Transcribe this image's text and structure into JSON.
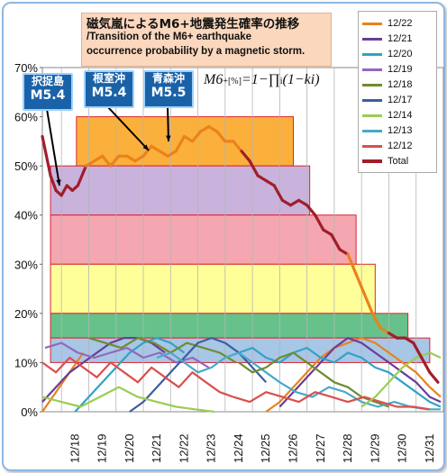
{
  "title": {
    "jp": "磁気嵐によるM6+地震発生確率の推移",
    "en_line1": "/Transition of the M6+ earthquake",
    "en_line2": "occurrence probability by a magnetic storm."
  },
  "equation": {
    "lhs": "M6",
    "sub": "+[%]",
    "rhs": "=1−∏",
    "sub_i": "i",
    "tail": "(1−ki)"
  },
  "annotations": [
    {
      "place": "択捉島",
      "magnitude": "M5.4"
    },
    {
      "place": "根室沖",
      "magnitude": "M5.4"
    },
    {
      "place": "青森沖",
      "magnitude": "M5.5"
    }
  ],
  "colors": {
    "total": "#a01e2a",
    "total_orange": "#e8821e",
    "band_orange": "#fbb03b",
    "band_purple": "#c9b3dd",
    "band_pink": "#f4a7b0",
    "band_yellow": "#ffff99",
    "band_green": "#66c28a",
    "band_blue": "#a8c6e6",
    "band_border": "#d9242f"
  },
  "chart_data": {
    "type": "line",
    "xlabel": "",
    "ylabel": "",
    "ylim": [
      0,
      70
    ],
    "y_ticks": [
      "0%",
      "10%",
      "20%",
      "30%",
      "40%",
      "50%",
      "60%",
      "70%"
    ],
    "x_ticks": [
      "12/18",
      "12/19",
      "12/20",
      "12/21",
      "12/22",
      "12/23",
      "12/24",
      "12/25",
      "12/26",
      "12/27",
      "12/28",
      "12/29",
      "12/30",
      "12/31"
    ],
    "xlim": [
      17.3,
      32.0
    ],
    "grid": "vertical",
    "legend_position": "top-right",
    "legend": [
      {
        "name": "12/22",
        "color": "#e8821e"
      },
      {
        "name": "12/21",
        "color": "#6a3d96"
      },
      {
        "name": "12/20",
        "color": "#2fa3c6"
      },
      {
        "name": "12/19",
        "color": "#9467bd"
      },
      {
        "name": "12/18",
        "color": "#6e8c2f"
      },
      {
        "name": "12/17",
        "color": "#3a5f9e"
      },
      {
        "name": "12/14",
        "color": "#9ccc52"
      },
      {
        "name": "12/13",
        "color": "#4aa8c8"
      },
      {
        "name": "12/12",
        "color": "#d94f4f"
      },
      {
        "name": "Total",
        "color": "#a01e2a"
      }
    ],
    "bands": [
      {
        "x": [
          18.55,
          26.5
        ],
        "y": [
          50,
          60
        ],
        "color": "#fbb03b"
      },
      {
        "x": [
          17.6,
          27.1
        ],
        "y": [
          40,
          50
        ],
        "color": "#c9b3dd"
      },
      {
        "x": [
          17.6,
          28.8
        ],
        "y": [
          30,
          40
        ],
        "color": "#f4a7b0"
      },
      {
        "x": [
          17.6,
          29.5
        ],
        "y": [
          20,
          30
        ],
        "color": "#ffff99"
      },
      {
        "x": [
          17.6,
          30.7
        ],
        "y": [
          15,
          20
        ],
        "color": "#66c28a"
      },
      {
        "x": [
          17.6,
          31.5
        ],
        "y": [
          10,
          15
        ],
        "color": "#a8c6e6"
      }
    ],
    "total": {
      "x": [
        17.3,
        17.6,
        17.8,
        18.0,
        18.2,
        18.4,
        18.6,
        18.9,
        19.2,
        19.5,
        19.8,
        20.1,
        20.4,
        20.7,
        21.0,
        21.3,
        21.6,
        21.9,
        22.2,
        22.5,
        22.8,
        23.1,
        23.4,
        23.7,
        24.0,
        24.3,
        24.6,
        24.9,
        25.2,
        25.5,
        25.8,
        26.1,
        26.4,
        26.7,
        27.0,
        27.3,
        27.6,
        27.9,
        28.2,
        28.5,
        28.8,
        29.1,
        29.4,
        29.7,
        30.0,
        30.3,
        30.6,
        30.9,
        31.2,
        31.5,
        31.8
      ],
      "y": [
        56,
        48,
        45,
        44,
        46,
        45,
        46,
        50,
        51,
        52,
        50,
        52,
        52,
        51,
        52,
        54,
        53,
        52,
        53,
        56,
        55,
        57,
        58,
        57,
        55,
        55,
        53,
        51,
        48,
        47,
        46,
        43,
        42,
        43,
        42,
        40,
        37,
        36,
        33,
        32,
        28,
        24,
        20,
        17,
        16,
        15,
        15,
        14,
        11,
        8,
        6
      ]
    },
    "series": [
      {
        "name": "12/22",
        "color": "#e8821e",
        "x": [
          17.3,
          17.8,
          18.3,
          18.8
        ],
        "y": [
          0,
          4,
          8,
          12
        ]
      },
      {
        "name": "12/21",
        "color": "#6a3d96",
        "x": [
          17.3,
          17.8,
          18.3,
          18.8,
          19.3,
          19.8,
          20.3,
          20.8,
          21.3,
          21.8
        ],
        "y": [
          2,
          5,
          8,
          10,
          12,
          14,
          15,
          15,
          14,
          12
        ]
      },
      {
        "name": "12/20",
        "color": "#2fa3c6",
        "x": [
          18.5,
          19.0,
          19.5,
          20.0,
          20.5,
          21.0,
          21.5,
          22.0,
          22.5
        ],
        "y": [
          0,
          3,
          6,
          9,
          12,
          14,
          15,
          14,
          12
        ]
      },
      {
        "name": "12/19",
        "color": "#9467bd",
        "x": [
          17.4,
          18.0,
          18.6,
          19.2,
          19.8,
          20.4,
          21.0,
          21.6,
          22.2,
          22.8,
          23.4
        ],
        "y": [
          13,
          14,
          12,
          11,
          12,
          13,
          11,
          12,
          10,
          11,
          9
        ]
      },
      {
        "name": "12/18",
        "color": "#6e8c2f",
        "x": [
          19.0,
          19.6,
          20.2,
          20.8,
          21.4,
          22.0,
          22.6,
          23.2,
          23.8,
          24.4
        ],
        "y": [
          15,
          14,
          13,
          15,
          14,
          12,
          14,
          13,
          12,
          10
        ]
      },
      {
        "name": "12/17",
        "color": "#3a5f9e",
        "x": [
          20.5,
          21.0,
          21.5,
          22.0,
          22.5,
          23.0,
          23.5,
          24.0,
          24.5,
          25.0,
          25.5
        ],
        "y": [
          0,
          2,
          5,
          8,
          11,
          14,
          15,
          14,
          12,
          9,
          6
        ]
      },
      {
        "name": "12/14",
        "color": "#9ccc52",
        "x": [
          17.3,
          18.0,
          18.7,
          19.4,
          20.1,
          20.8,
          21.5,
          22.2,
          22.9,
          23.6
        ],
        "y": [
          3,
          2,
          1,
          3,
          5,
          3,
          2,
          1,
          0.5,
          0
        ]
      },
      {
        "name": "12/13",
        "color": "#4aa8c8",
        "x": [
          21.5,
          22.0,
          22.5,
          23.0,
          23.5,
          24.0,
          24.5,
          25.0,
          25.5,
          26.0
        ],
        "y": [
          11,
          12,
          10,
          8,
          9,
          11,
          12,
          10,
          8,
          6
        ]
      },
      {
        "name": "12/12",
        "color": "#d94f4f",
        "x": [
          17.3,
          17.8,
          18.3,
          18.8,
          19.3,
          19.8,
          20.3,
          20.8,
          21.3,
          21.8,
          22.3,
          22.8,
          23.3,
          23.8,
          24.3
        ],
        "y": [
          10,
          8,
          11,
          9,
          7,
          10,
          8,
          6,
          9,
          7,
          5,
          8,
          6,
          4,
          3
        ]
      },
      {
        "name": "12/22b",
        "color": "#e8821e",
        "x": [
          25.5,
          26.0,
          26.5,
          27.0,
          27.5,
          28.0,
          28.5,
          29.0,
          29.5,
          30.0,
          30.5,
          31.0,
          31.5,
          31.9
        ],
        "y": [
          0,
          2,
          5,
          8,
          11,
          13,
          14,
          15,
          14,
          12,
          10,
          8,
          5,
          3
        ]
      },
      {
        "name": "12/21b",
        "color": "#6a3d96",
        "x": [
          26.0,
          26.5,
          27.0,
          27.5,
          28.0,
          28.5,
          29.0,
          29.5,
          30.0,
          30.5,
          31.0,
          31.5,
          31.9
        ],
        "y": [
          1,
          4,
          7,
          10,
          13,
          15,
          14,
          12,
          10,
          8,
          6,
          3,
          2
        ]
      },
      {
        "name": "12/20b",
        "color": "#2fa3c6",
        "x": [
          24.5,
          25.0,
          25.5,
          26.0,
          26.5,
          27.0,
          27.5,
          28.0,
          28.5,
          29.0,
          29.5,
          30.0,
          30.5,
          31.0,
          31.5,
          31.9
        ],
        "y": [
          12,
          13,
          11,
          10,
          12,
          13,
          11,
          10,
          12,
          11,
          9,
          8,
          6,
          4,
          2,
          1
        ]
      },
      {
        "name": "12/18b",
        "color": "#6e8c2f",
        "x": [
          24.5,
          25.0,
          25.5,
          26.0,
          26.5,
          27.0,
          27.5,
          28.0,
          28.5,
          29.0,
          29.5,
          30.0
        ],
        "y": [
          10,
          8,
          9,
          11,
          12,
          10,
          8,
          6,
          5,
          3,
          2,
          1
        ]
      },
      {
        "name": "12/13b",
        "color": "#4aa8c8",
        "x": [
          26.0,
          26.6,
          27.2,
          27.8,
          28.4,
          29.0,
          29.6,
          30.2,
          30.8,
          31.4,
          31.9
        ],
        "y": [
          6,
          4,
          3,
          5,
          4,
          2,
          1,
          2,
          1,
          0.5,
          0.5
        ]
      },
      {
        "name": "12/12b",
        "color": "#d94f4f",
        "x": [
          24.3,
          24.9,
          25.5,
          26.1,
          26.7,
          27.3,
          27.9,
          28.5,
          29.1,
          29.7,
          30.3,
          30.9,
          31.5
        ],
        "y": [
          3,
          2,
          4,
          3,
          2,
          4,
          3,
          2,
          3,
          2,
          1,
          1,
          0.5
        ]
      },
      {
        "name": "12/14b",
        "color": "#9ccc52",
        "x": [
          29.0,
          29.5,
          30.0,
          30.5,
          31.0,
          31.5,
          31.9
        ],
        "y": [
          1,
          3,
          6,
          9,
          11,
          12,
          11
        ]
      }
    ]
  }
}
